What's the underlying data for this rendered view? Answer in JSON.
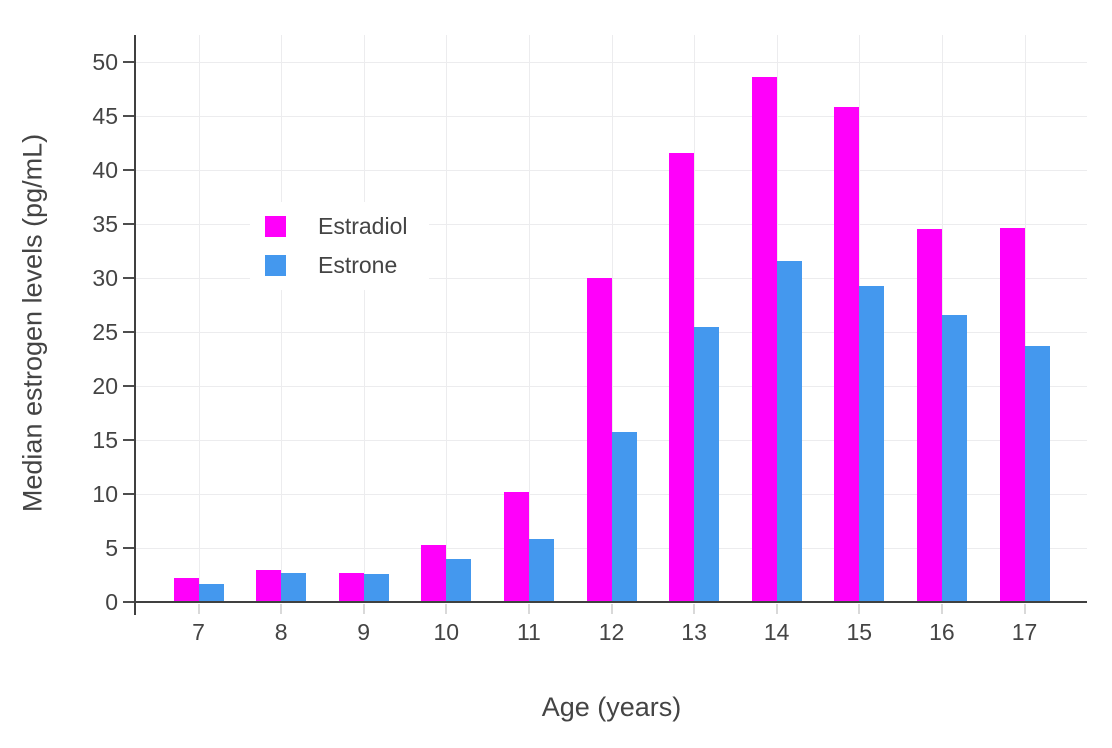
{
  "chart_data": {
    "type": "bar",
    "title": "",
    "xlabel": "Age (years)",
    "ylabel": "Median estrogen levels (pg/mL)",
    "categories": [
      7,
      8,
      9,
      10,
      11,
      12,
      13,
      14,
      15,
      16,
      17
    ],
    "series": [
      {
        "name": "Estradiol",
        "color": "#FF00FA",
        "values": [
          2.2,
          3.0,
          2.7,
          5.3,
          10.2,
          30.0,
          41.6,
          48.6,
          45.8,
          34.5,
          34.6
        ]
      },
      {
        "name": "Estrone",
        "color": "#4498EE",
        "values": [
          1.7,
          2.7,
          2.6,
          4.0,
          5.8,
          15.7,
          25.5,
          31.6,
          29.3,
          26.6,
          23.7
        ]
      }
    ],
    "yticks": [
      0,
      5,
      10,
      15,
      20,
      25,
      30,
      35,
      40,
      45,
      50
    ],
    "ylim": [
      0,
      52.5
    ],
    "grid": true,
    "legend_position": "inside-top-left",
    "background_color": "#FFFFFF",
    "grid_color": "#ECECEE",
    "axis_color": "#404040",
    "text_color": "#444444"
  }
}
